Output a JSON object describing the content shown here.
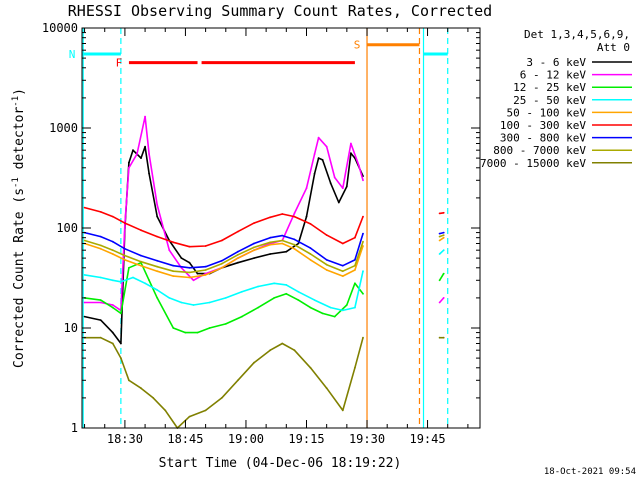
{
  "chart_data": {
    "type": "line",
    "title": "RHESSI Observing Summary Count Rates, Corrected",
    "xlabel": "Start Time (04-Dec-06 18:19:22)",
    "ylabel_main": "Corrected Count Rate (s",
    "ylabel_sup1": "-1",
    "ylabel_mid": " detector",
    "ylabel_sup2": "-1",
    "ylabel_end": ")",
    "yscale": "log",
    "ylim": [
      1,
      10000
    ],
    "xlim": [
      "18:19:22",
      "19:58:00"
    ],
    "x_ticks": [
      "18:30",
      "18:45",
      "19:00",
      "19:15",
      "19:30",
      "19:45"
    ],
    "y_ticks": [
      "1",
      "10",
      "100",
      "1000",
      "10000"
    ],
    "legend_header": [
      "Det 1,3,4,5,6,9,",
      "Att 0"
    ],
    "legend_position": "outside-right",
    "timestamp": "18-Oct-2021 09:54",
    "series": [
      {
        "name": "3 - 6 keV",
        "color": "#000000",
        "points": [
          [
            "18:20",
            13
          ],
          [
            "18:24",
            12
          ],
          [
            "18:27",
            9
          ],
          [
            "18:29",
            7
          ],
          [
            "18:30",
            100
          ],
          [
            "18:31",
            450
          ],
          [
            "18:32",
            600
          ],
          [
            "18:34",
            500
          ],
          [
            "18:35",
            650
          ],
          [
            "18:36",
            350
          ],
          [
            "18:38",
            130
          ],
          [
            "18:41",
            75
          ],
          [
            "18:44",
            50
          ],
          [
            "18:46",
            45
          ],
          [
            "18:48",
            35
          ],
          [
            "18:51",
            35
          ],
          [
            "18:54",
            40
          ],
          [
            "18:58",
            45
          ],
          [
            "19:02",
            50
          ],
          [
            "19:06",
            55
          ],
          [
            "19:10",
            58
          ],
          [
            "19:13",
            70
          ],
          [
            "19:15",
            130
          ],
          [
            "19:17",
            350
          ],
          [
            "19:18",
            500
          ],
          [
            "19:19",
            480
          ],
          [
            "19:21",
            280
          ],
          [
            "19:23",
            180
          ],
          [
            "19:25",
            260
          ],
          [
            "19:26",
            560
          ],
          [
            "19:27",
            500
          ],
          [
            "19:29",
            330
          ]
        ]
      },
      {
        "name": "6 - 12 keV",
        "color": "#ff00ff",
        "points": [
          [
            "18:20",
            18
          ],
          [
            "18:24",
            18
          ],
          [
            "18:27",
            17
          ],
          [
            "18:29",
            15
          ],
          [
            "18:30",
            110
          ],
          [
            "18:31",
            400
          ],
          [
            "18:33",
            550
          ],
          [
            "18:35",
            1300
          ],
          [
            "18:36",
            550
          ],
          [
            "18:38",
            170
          ],
          [
            "18:41",
            60
          ],
          [
            "18:44",
            40
          ],
          [
            "18:47",
            30
          ],
          [
            "18:50",
            35
          ],
          [
            "18:54",
            40
          ],
          [
            "18:58",
            50
          ],
          [
            "19:02",
            60
          ],
          [
            "19:06",
            70
          ],
          [
            "19:09",
            75
          ],
          [
            "19:12",
            140
          ],
          [
            "19:15",
            250
          ],
          [
            "19:17",
            550
          ],
          [
            "19:18",
            800
          ],
          [
            "19:20",
            650
          ],
          [
            "19:22",
            320
          ],
          [
            "19:24",
            250
          ],
          [
            "19:26",
            700
          ],
          [
            "19:28",
            420
          ],
          [
            "19:29",
            300
          ],
          [
            "19:48",
            18
          ],
          [
            "19:49",
            20
          ]
        ]
      },
      {
        "name": "12 - 25 keV",
        "color": "#00ee00",
        "points": [
          [
            "18:20",
            20
          ],
          [
            "18:24",
            19
          ],
          [
            "18:27",
            16
          ],
          [
            "18:29",
            14
          ],
          [
            "18:31",
            40
          ],
          [
            "18:34",
            45
          ],
          [
            "18:36",
            30
          ],
          [
            "18:38",
            20
          ],
          [
            "18:42",
            10
          ],
          [
            "18:45",
            9
          ],
          [
            "18:48",
            9
          ],
          [
            "18:51",
            10
          ],
          [
            "18:55",
            11
          ],
          [
            "18:59",
            13
          ],
          [
            "19:03",
            16
          ],
          [
            "19:07",
            20
          ],
          [
            "19:10",
            22
          ],
          [
            "19:13",
            19
          ],
          [
            "19:16",
            16
          ],
          [
            "19:19",
            14
          ],
          [
            "19:22",
            13
          ],
          [
            "19:25",
            17
          ],
          [
            "19:27",
            28
          ],
          [
            "19:29",
            22
          ],
          [
            "19:48",
            30
          ],
          [
            "19:49",
            35
          ]
        ]
      },
      {
        "name": "25 - 50 keV",
        "color": "#00ffff",
        "points": [
          [
            "18:20",
            34
          ],
          [
            "18:24",
            32
          ],
          [
            "18:27",
            30
          ],
          [
            "18:29",
            29
          ],
          [
            "18:32",
            32
          ],
          [
            "18:35",
            28
          ],
          [
            "18:38",
            24
          ],
          [
            "18:41",
            20
          ],
          [
            "18:44",
            18
          ],
          [
            "18:47",
            17
          ],
          [
            "18:51",
            18
          ],
          [
            "18:55",
            20
          ],
          [
            "18:59",
            23
          ],
          [
            "19:03",
            26
          ],
          [
            "19:07",
            28
          ],
          [
            "19:10",
            27
          ],
          [
            "19:13",
            23
          ],
          [
            "19:17",
            19
          ],
          [
            "19:21",
            16
          ],
          [
            "19:24",
            15
          ],
          [
            "19:27",
            16
          ],
          [
            "19:29",
            37
          ],
          [
            "19:48",
            55
          ],
          [
            "19:49",
            60
          ]
        ]
      },
      {
        "name": "50 - 100 keV",
        "color": "#ffa500",
        "points": [
          [
            "18:20",
            70
          ],
          [
            "18:24",
            62
          ],
          [
            "18:27",
            55
          ],
          [
            "18:30",
            48
          ],
          [
            "18:34",
            42
          ],
          [
            "18:38",
            37
          ],
          [
            "18:42",
            33
          ],
          [
            "18:46",
            32
          ],
          [
            "18:50",
            34
          ],
          [
            "18:54",
            40
          ],
          [
            "18:58",
            50
          ],
          [
            "19:02",
            60
          ],
          [
            "19:06",
            68
          ],
          [
            "19:09",
            70
          ],
          [
            "19:12",
            62
          ],
          [
            "19:16",
            48
          ],
          [
            "19:20",
            38
          ],
          [
            "19:24",
            33
          ],
          [
            "19:27",
            38
          ],
          [
            "19:29",
            66
          ],
          [
            "19:48",
            75
          ],
          [
            "19:49",
            80
          ]
        ]
      },
      {
        "name": "100 - 300 keV",
        "color": "#ff0000",
        "points": [
          [
            "18:20",
            160
          ],
          [
            "18:24",
            145
          ],
          [
            "18:27",
            130
          ],
          [
            "18:30",
            112
          ],
          [
            "18:34",
            95
          ],
          [
            "18:38",
            82
          ],
          [
            "18:42",
            72
          ],
          [
            "18:46",
            65
          ],
          [
            "18:50",
            66
          ],
          [
            "18:54",
            75
          ],
          [
            "18:58",
            92
          ],
          [
            "19:02",
            112
          ],
          [
            "19:06",
            128
          ],
          [
            "19:09",
            138
          ],
          [
            "19:12",
            130
          ],
          [
            "19:16",
            110
          ],
          [
            "19:20",
            85
          ],
          [
            "19:24",
            70
          ],
          [
            "19:27",
            80
          ],
          [
            "19:29",
            130
          ],
          [
            "19:48",
            140
          ],
          [
            "19:49",
            142
          ]
        ]
      },
      {
        "name": "300 - 800 keV",
        "color": "#0000ff",
        "points": [
          [
            "18:20",
            90
          ],
          [
            "18:24",
            82
          ],
          [
            "18:27",
            73
          ],
          [
            "18:30",
            62
          ],
          [
            "18:34",
            53
          ],
          [
            "18:38",
            47
          ],
          [
            "18:42",
            42
          ],
          [
            "18:46",
            40
          ],
          [
            "18:50",
            41
          ],
          [
            "18:54",
            47
          ],
          [
            "18:58",
            58
          ],
          [
            "19:02",
            70
          ],
          [
            "19:06",
            80
          ],
          [
            "19:09",
            84
          ],
          [
            "19:12",
            77
          ],
          [
            "19:16",
            63
          ],
          [
            "19:20",
            48
          ],
          [
            "19:24",
            42
          ],
          [
            "19:27",
            48
          ],
          [
            "19:29",
            88
          ],
          [
            "19:48",
            88
          ],
          [
            "19:49",
            90
          ]
        ]
      },
      {
        "name": "800 - 7000 keV",
        "color": "#aaaa00",
        "points": [
          [
            "18:20",
            75
          ],
          [
            "18:24",
            67
          ],
          [
            "18:27",
            60
          ],
          [
            "18:30",
            53
          ],
          [
            "18:34",
            46
          ],
          [
            "18:38",
            41
          ],
          [
            "18:42",
            37
          ],
          [
            "18:46",
            36
          ],
          [
            "18:50",
            38
          ],
          [
            "18:54",
            44
          ],
          [
            "18:58",
            54
          ],
          [
            "19:02",
            64
          ],
          [
            "19:06",
            72
          ],
          [
            "19:09",
            75
          ],
          [
            "19:12",
            68
          ],
          [
            "19:16",
            55
          ],
          [
            "19:20",
            43
          ],
          [
            "19:24",
            37
          ],
          [
            "19:27",
            42
          ],
          [
            "19:29",
            73
          ],
          [
            "19:48",
            82
          ],
          [
            "19:49",
            85
          ]
        ]
      },
      {
        "name": "7000 - 15000 keV",
        "color": "#808000",
        "points": [
          [
            "18:20",
            8
          ],
          [
            "18:24",
            8
          ],
          [
            "18:27",
            7
          ],
          [
            "18:29",
            5
          ],
          [
            "18:31",
            3
          ],
          [
            "18:34",
            2.5
          ],
          [
            "18:37",
            2
          ],
          [
            "18:40",
            1.5
          ],
          [
            "18:43",
            1
          ],
          [
            "18:46",
            1.3
          ],
          [
            "18:50",
            1.5
          ],
          [
            "18:54",
            2
          ],
          [
            "18:58",
            3
          ],
          [
            "19:02",
            4.5
          ],
          [
            "19:06",
            6
          ],
          [
            "19:09",
            7
          ],
          [
            "19:12",
            6
          ],
          [
            "19:16",
            4
          ],
          [
            "19:20",
            2.5
          ],
          [
            "19:24",
            1.5
          ],
          [
            "19:27",
            4
          ],
          [
            "19:29",
            8
          ],
          [
            "19:48",
            8
          ],
          [
            "19:49",
            8
          ]
        ]
      }
    ],
    "flags": [
      {
        "label": "F",
        "color": "#ff0000",
        "start": "18:31",
        "end": "19:27",
        "gap_start": "18:48",
        "gap_end": "18:49",
        "level": 4500
      },
      {
        "label": "N",
        "color": "#00ffff",
        "start": "18:19:22",
        "end": "18:29",
        "level": 5500
      },
      {
        "label": "S",
        "color": "#ff8000",
        "start": "19:30",
        "end": "19:43",
        "level": 6800
      },
      {
        "label": "",
        "color": "#00ffff",
        "start": "19:44",
        "end": "19:50",
        "level": 5500
      }
    ],
    "vlines": [
      {
        "t": "18:19:40",
        "color": "#00ffff",
        "dashed": false
      },
      {
        "t": "18:29",
        "color": "#00ffff",
        "dashed": true
      },
      {
        "t": "19:30",
        "color": "#ff8000",
        "dashed": false
      },
      {
        "t": "19:43",
        "color": "#ff8000",
        "dashed": true
      },
      {
        "t": "19:44",
        "color": "#00ffff",
        "dashed": false
      },
      {
        "t": "19:50",
        "color": "#00ffff",
        "dashed": true
      }
    ]
  }
}
